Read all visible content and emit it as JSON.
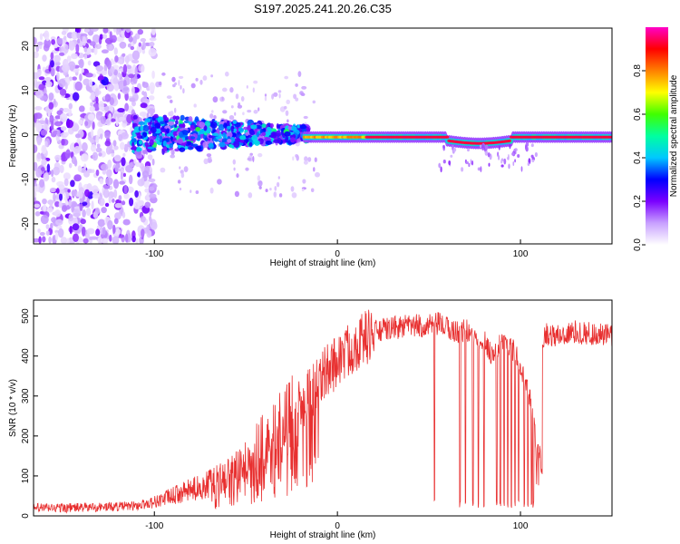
{
  "title": "S197.2025.241.20.26.C35",
  "chart_data": [
    {
      "type": "heatmap",
      "title": "S197.2025.241.20.26.C35",
      "xlabel": "Height of straight line (km)",
      "ylabel": "Frequency (Hz)",
      "xlim": [
        -166,
        150
      ],
      "ylim": [
        -24.5,
        24
      ],
      "xticks": [
        -100,
        0,
        100
      ],
      "yticks": [
        -20,
        -10,
        0,
        10,
        20
      ],
      "colorbar": {
        "label": "Normalized spectral amplitude",
        "range": [
          0,
          1
        ],
        "ticks": [
          "0.0",
          "0.2",
          "0.4",
          "0.6",
          "0.8"
        ],
        "colors": [
          "#ffffff",
          "#c8a0ff",
          "#7a00ff",
          "#0000ff",
          "#00c8ff",
          "#00ffa0",
          "#40ff00",
          "#ffff00",
          "#ff8000",
          "#ff0000",
          "#ff00c8"
        ]
      },
      "description_regions": [
        {
          "x_range": [
            -166,
            -100
          ],
          "freq_range": [
            -24,
            24
          ],
          "amplitude": "low scattered noise (0.05-0.25)"
        },
        {
          "x_range": [
            -112,
            -20
          ],
          "freq_range": [
            -5,
            5
          ],
          "amplitude": "mid (0.2-0.5)"
        },
        {
          "x_range": [
            -20,
            150
          ],
          "freq_range": [
            -1.5,
            0.5
          ],
          "amplitude": "high narrow band (0.8-1.0)"
        }
      ]
    },
    {
      "type": "line",
      "title": "",
      "xlabel": "Height of straight line (km)",
      "ylabel": "SNR (10 * v/v)",
      "xlim": [
        -166,
        150
      ],
      "ylim": [
        0,
        540
      ],
      "xticks": [
        -100,
        0,
        100
      ],
      "yticks": [
        0,
        100,
        200,
        300,
        400,
        500
      ],
      "color": "#e83030",
      "series": [
        {
          "name": "SNR",
          "x": [
            -166,
            -150,
            -130,
            -110,
            -100,
            -90,
            -80,
            -70,
            -60,
            -50,
            -40,
            -30,
            -20,
            -10,
            0,
            10,
            20,
            30,
            40,
            50,
            55,
            60,
            65,
            70,
            75,
            80,
            85,
            90,
            95,
            100,
            105,
            110,
            112,
            115,
            120,
            130,
            140,
            150
          ],
          "values": [
            20,
            20,
            22,
            25,
            35,
            50,
            65,
            80,
            100,
            130,
            180,
            230,
            280,
            340,
            390,
            430,
            460,
            470,
            475,
            475,
            480,
            470,
            460,
            465,
            450,
            440,
            400,
            440,
            420,
            380,
            300,
            150,
            450,
            455,
            450,
            460,
            455,
            450
          ]
        }
      ],
      "dropouts_x": [
        53,
        67,
        70,
        74,
        77,
        80,
        87,
        89,
        91,
        93,
        95,
        97,
        99,
        102,
        104,
        106,
        107,
        109
      ]
    }
  ]
}
